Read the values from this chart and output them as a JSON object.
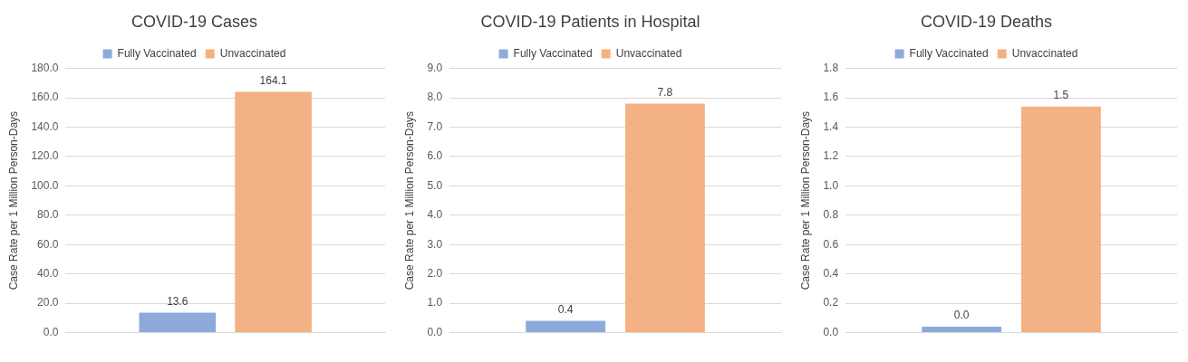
{
  "chart_data": [
    {
      "type": "bar",
      "title": "COVID-19 Cases",
      "ylabel": "Case Rate per 1 Million Person-Days",
      "categories": [
        null
      ],
      "legend": "top",
      "grid": "y",
      "ylim": [
        0,
        180
      ],
      "yticks": [
        {
          "value": 0,
          "label": "0.0"
        },
        {
          "value": 20,
          "label": "20.0"
        },
        {
          "value": 40,
          "label": "40.0"
        },
        {
          "value": 60,
          "label": "60.0"
        },
        {
          "value": 80,
          "label": "80.0"
        },
        {
          "value": 100,
          "label": "100.0"
        },
        {
          "value": 120,
          "label": "120.0"
        },
        {
          "value": 140,
          "label": "140.0"
        },
        {
          "value": 160,
          "label": "160.0"
        },
        {
          "value": 180,
          "label": "180.0"
        }
      ],
      "series": [
        {
          "name": "Fully Vaccinated",
          "color": "#8eaadb",
          "values": [
            13.6
          ],
          "value_labels": [
            "13.6"
          ]
        },
        {
          "name": "Unvaccinated",
          "color": "#f4b183",
          "values": [
            164.1
          ],
          "value_labels": [
            "164.1"
          ]
        }
      ]
    },
    {
      "type": "bar",
      "title": "COVID-19 Patients in Hospital",
      "ylabel": "Case Rate per 1 Million Person-Days",
      "categories": [
        null
      ],
      "legend": "top",
      "grid": "y",
      "ylim": [
        0,
        9
      ],
      "yticks": [
        {
          "value": 0,
          "label": "0.0"
        },
        {
          "value": 1,
          "label": "1.0"
        },
        {
          "value": 2,
          "label": "2.0"
        },
        {
          "value": 3,
          "label": "3.0"
        },
        {
          "value": 4,
          "label": "4.0"
        },
        {
          "value": 5,
          "label": "5.0"
        },
        {
          "value": 6,
          "label": "6.0"
        },
        {
          "value": 7,
          "label": "7.0"
        },
        {
          "value": 8,
          "label": "8.0"
        },
        {
          "value": 9,
          "label": "9.0"
        }
      ],
      "series": [
        {
          "name": "Fully Vaccinated",
          "color": "#8eaadb",
          "values": [
            0.4
          ],
          "value_labels": [
            "0.4"
          ]
        },
        {
          "name": "Unvaccinated",
          "color": "#f4b183",
          "values": [
            7.8
          ],
          "value_labels": [
            "7.8"
          ]
        }
      ]
    },
    {
      "type": "bar",
      "title": "COVID-19 Deaths",
      "ylabel": "Case Rate per 1 Million Person-Days",
      "categories": [
        null
      ],
      "legend": "top",
      "grid": "y",
      "ylim": [
        0,
        1.8
      ],
      "yticks": [
        {
          "value": 0,
          "label": "0.0"
        },
        0.2,
        0.4,
        0.6,
        0.8,
        {
          "value": 1,
          "label": "1.0"
        },
        1.2,
        1.4,
        1.6,
        1.8
      ],
      "series": [
        {
          "name": "Fully Vaccinated",
          "color": "#8eaadb",
          "values": [
            0.04
          ],
          "value_labels": [
            "0.0"
          ]
        },
        {
          "name": "Unvaccinated",
          "color": "#f4b183",
          "values": [
            1.54
          ],
          "value_labels": [
            "1.5"
          ]
        }
      ]
    }
  ]
}
